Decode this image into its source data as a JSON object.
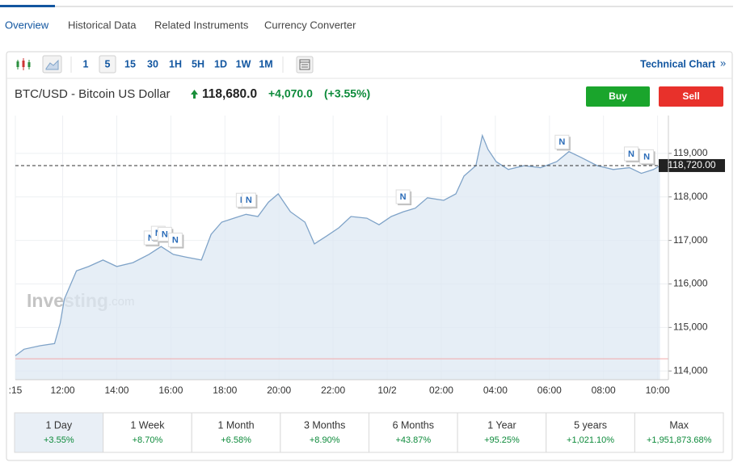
{
  "tabs": [
    "Overview",
    "Historical Data",
    "Related Instruments",
    "Currency Converter"
  ],
  "active_tab": 0,
  "toolbar": {
    "intervals": [
      "1",
      "5",
      "15",
      "30",
      "1H",
      "5H",
      "1D",
      "1W",
      "1M"
    ],
    "active_interval": 1,
    "technical_chart": "Technical Chart",
    "technical_chart_icon": "»"
  },
  "quote": {
    "name": "BTC/USD - Bitcoin US Dollar",
    "price": "118,680.0",
    "change": "+4,070.0",
    "change_pct": "(+3.55%)"
  },
  "buttons": {
    "buy": "Buy",
    "sell": "Sell"
  },
  "chart_data": {
    "type": "area",
    "color": "#7fa3c8",
    "fill": "#dde8f3",
    "grid": true,
    "x": [
      10.25,
      10.57,
      11.16,
      11.7,
      11.91,
      12.06,
      12.51,
      12.96,
      13.49,
      14,
      14.6,
      15.19,
      15.64,
      16.09,
      16.54,
      17.13,
      17.49,
      17.88,
      18.33,
      18.78,
      19.22,
      19.61,
      19.97,
      20.42,
      20.96,
      21.31,
      21.76,
      22.21,
      22.66,
      23.25,
      23.7,
      24.15,
      24.6,
      25.04,
      25.49,
      26.09,
      26.54,
      26.84,
      27.28,
      27.52,
      27.73,
      28.03,
      28.48,
      29.07,
      29.67,
      30.27,
      30.72,
      31.16,
      31.76,
      32.36,
      32.96,
      33.4,
      33.85,
      34.09
    ],
    "values": [
      114350,
      114500,
      114580,
      114630,
      115100,
      115650,
      116300,
      116400,
      116550,
      116400,
      116490,
      116680,
      116860,
      116680,
      116620,
      116550,
      117140,
      117420,
      117510,
      117600,
      117550,
      117880,
      118070,
      117660,
      117420,
      116920,
      117100,
      117290,
      117550,
      117510,
      117360,
      117550,
      117660,
      117740,
      117980,
      117920,
      118070,
      118480,
      118720,
      119410,
      119090,
      118810,
      118630,
      118720,
      118670,
      118810,
      119040,
      118910,
      118720,
      118630,
      118670,
      118540,
      118630,
      118720
    ],
    "xlim": [
      10.25,
      34.4
    ],
    "ylim": [
      113800,
      119870
    ],
    "xticks": [
      {
        "value": 10.25,
        "label": ":15"
      },
      {
        "value": 12,
        "label": "12:00"
      },
      {
        "value": 14,
        "label": "14:00"
      },
      {
        "value": 16,
        "label": "16:00"
      },
      {
        "value": 18,
        "label": "18:00"
      },
      {
        "value": 20,
        "label": "20:00"
      },
      {
        "value": 22,
        "label": "22:00"
      },
      {
        "value": 24,
        "label": "10/2"
      },
      {
        "value": 26,
        "label": "02:00"
      },
      {
        "value": 28,
        "label": "04:00"
      },
      {
        "value": 30,
        "label": "06:00"
      },
      {
        "value": 32,
        "label": "08:00"
      },
      {
        "value": 34,
        "label": "10:00"
      }
    ],
    "yticks": [
      {
        "value": 114000,
        "label": "114,000"
      },
      {
        "value": 115000,
        "label": "115,000"
      },
      {
        "value": 116000,
        "label": "116,000"
      },
      {
        "value": 117000,
        "label": "117,000"
      },
      {
        "value": 118000,
        "label": "118,000"
      },
      {
        "value": 119000,
        "label": "119,000"
      }
    ],
    "last_price": {
      "value": 118720,
      "label": "118,720.00"
    },
    "reference_line": 114280,
    "watermark": [
      "Investing",
      ".com"
    ],
    "news_markers": [
      {
        "label": "N",
        "x": 15.28
      },
      {
        "label": "N",
        "x": 15.55
      },
      {
        "label": "N",
        "x": 15.79
      },
      {
        "label": "N",
        "x": 16.18
      },
      {
        "label": "N",
        "x": 18.69
      },
      {
        "label": "N",
        "x": 18.9
      },
      {
        "label": "N",
        "x": 24.6
      },
      {
        "label": "N",
        "x": 30.48
      },
      {
        "label": "N",
        "x": 33.04
      },
      {
        "label": "N",
        "x": 33.61
      }
    ]
  },
  "periods": {
    "active": 0,
    "items": [
      {
        "label": "1 Day",
        "change": "+3.55%"
      },
      {
        "label": "1 Week",
        "change": "+8.70%"
      },
      {
        "label": "1 Month",
        "change": "+6.58%"
      },
      {
        "label": "3 Months",
        "change": "+8.90%"
      },
      {
        "label": "6 Months",
        "change": "+43.87%"
      },
      {
        "label": "1 Year",
        "change": "+95.25%"
      },
      {
        "label": "5 years",
        "change": "+1,021.10%"
      },
      {
        "label": "Max",
        "change": "+1,951,873.68%"
      }
    ]
  }
}
